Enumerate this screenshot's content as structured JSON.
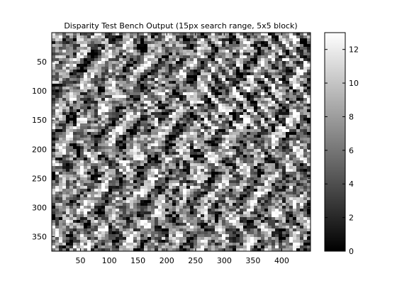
{
  "chart_data": {
    "type": "heatmap",
    "title": "Disparity Test Bench Output (15px search range, 5x5 block)",
    "xlabel": "",
    "ylabel": "",
    "colormap": "gray",
    "xlim": [
      0,
      450
    ],
    "ylim": [
      375,
      0
    ],
    "x_ticks": [
      50,
      100,
      150,
      200,
      250,
      300,
      350,
      400
    ],
    "y_ticks": [
      50,
      100,
      150,
      200,
      250,
      300,
      350
    ],
    "colorbar": {
      "range": [
        0,
        13
      ],
      "ticks": [
        0,
        2,
        4,
        6,
        8,
        10,
        12
      ]
    },
    "grid": false
  }
}
